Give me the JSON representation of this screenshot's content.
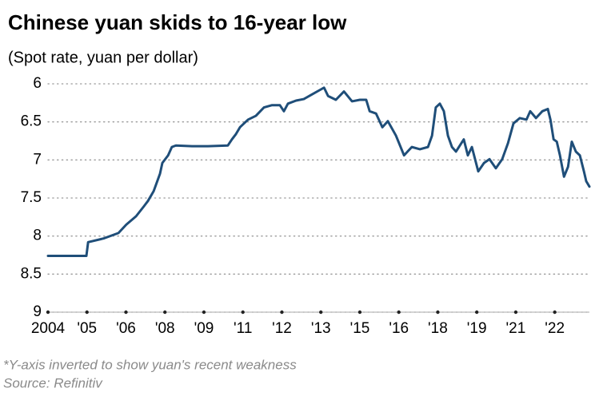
{
  "chart_data": {
    "type": "line",
    "title": "Chinese yuan skids to 16-year low",
    "subtitle": "(Spot rate, yuan per dollar)",
    "footnote": "*Y-axis inverted to show yuan's recent weakness",
    "source": "Source: Refinitiv",
    "color": "#1f4e79",
    "grid": true,
    "y_inverted": true,
    "ylim": [
      6,
      9
    ],
    "yticks": [
      6,
      6.5,
      7,
      7.5,
      8,
      8.5,
      9
    ],
    "xlim": [
      2004,
      2022.75
    ],
    "xticks": [
      {
        "value": 2004,
        "label": "2004"
      },
      {
        "value": 2005.35,
        "label": "'05"
      },
      {
        "value": 2006.7,
        "label": "'06"
      },
      {
        "value": 2008.05,
        "label": "'08"
      },
      {
        "value": 2009.4,
        "label": "'09"
      },
      {
        "value": 2010.75,
        "label": "'11"
      },
      {
        "value": 2012.1,
        "label": "'12"
      },
      {
        "value": 2013.45,
        "label": "'13"
      },
      {
        "value": 2014.8,
        "label": "'15"
      },
      {
        "value": 2016.15,
        "label": "'16"
      },
      {
        "value": 2017.5,
        "label": "'18"
      },
      {
        "value": 2018.85,
        "label": "'19"
      },
      {
        "value": 2020.2,
        "label": "'21"
      },
      {
        "value": 2021.55,
        "label": "'22"
      }
    ],
    "x": [
      2004.0,
      2005.33,
      2005.39,
      2005.94,
      2006.44,
      2006.71,
      2007.05,
      2007.32,
      2007.46,
      2007.66,
      2007.88,
      2007.96,
      2008.16,
      2008.29,
      2008.43,
      2008.99,
      2009.54,
      2010.23,
      2010.37,
      2010.51,
      2010.65,
      2010.93,
      2011.2,
      2011.48,
      2011.76,
      2012.03,
      2012.17,
      2012.31,
      2012.59,
      2012.86,
      2013.14,
      2013.42,
      2013.56,
      2013.7,
      2013.97,
      2014.25,
      2014.53,
      2014.8,
      2015.02,
      2015.14,
      2015.36,
      2015.58,
      2015.77,
      2016.05,
      2016.33,
      2016.6,
      2016.88,
      2017.16,
      2017.3,
      2017.43,
      2017.57,
      2017.71,
      2017.85,
      2017.99,
      2018.13,
      2018.4,
      2018.54,
      2018.68,
      2018.9,
      2019.1,
      2019.29,
      2019.51,
      2019.73,
      2019.93,
      2020.12,
      2020.34,
      2020.57,
      2020.7,
      2020.9,
      2021.12,
      2021.31,
      2021.4,
      2021.51,
      2021.62,
      2021.73,
      2021.87,
      2022.01,
      2022.14,
      2022.28,
      2022.42,
      2022.56,
      2022.64,
      2022.75
    ],
    "values": [
      8.26,
      8.26,
      8.08,
      8.03,
      7.96,
      7.85,
      7.74,
      7.61,
      7.54,
      7.41,
      7.18,
      7.04,
      6.94,
      6.83,
      6.81,
      6.82,
      6.82,
      6.81,
      6.73,
      6.66,
      6.57,
      6.47,
      6.42,
      6.31,
      6.28,
      6.28,
      6.36,
      6.26,
      6.22,
      6.2,
      6.14,
      6.08,
      6.05,
      6.16,
      6.21,
      6.1,
      6.23,
      6.21,
      6.21,
      6.36,
      6.39,
      6.57,
      6.49,
      6.68,
      6.94,
      6.83,
      6.86,
      6.83,
      6.68,
      6.31,
      6.26,
      6.36,
      6.68,
      6.83,
      6.89,
      6.73,
      6.94,
      6.83,
      7.15,
      7.04,
      6.99,
      7.11,
      6.99,
      6.78,
      6.52,
      6.45,
      6.47,
      6.36,
      6.45,
      6.36,
      6.33,
      6.47,
      6.73,
      6.76,
      6.94,
      7.22,
      7.09,
      6.76,
      6.89,
      6.94,
      7.15,
      7.28,
      7.35
    ]
  }
}
